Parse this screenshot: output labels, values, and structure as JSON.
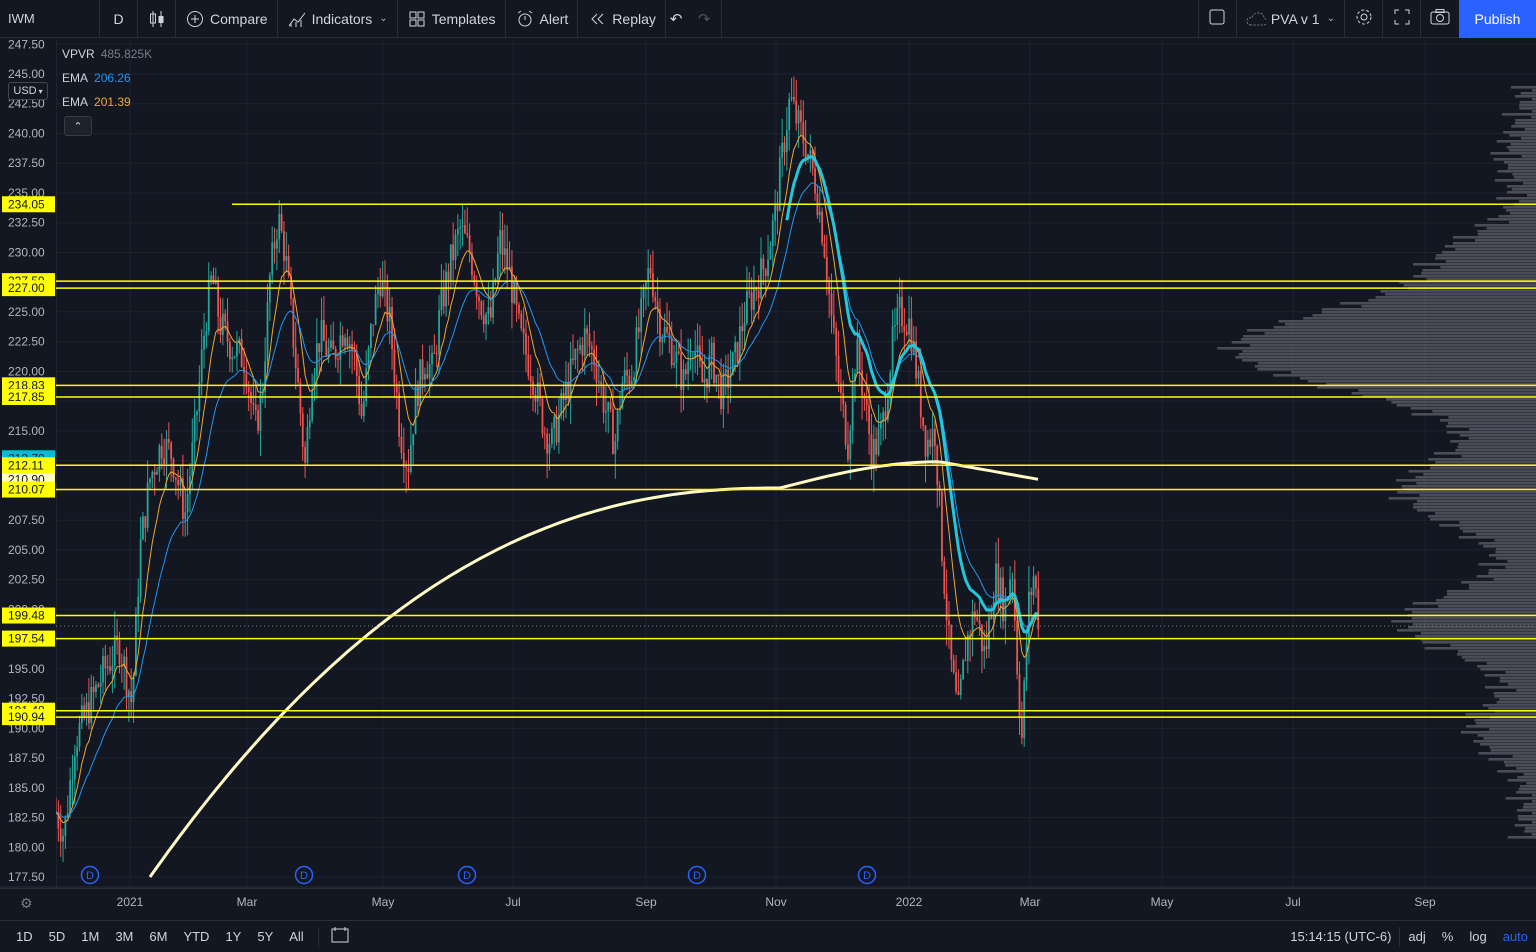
{
  "toolbar": {
    "symbol": "IWM",
    "interval": "D",
    "compare": "Compare",
    "indicators": "Indicators",
    "templates": "Templates",
    "alert": "Alert",
    "replay": "Replay",
    "layout_name": "PVA v 1",
    "publish": "Publish"
  },
  "legend": {
    "vpvr_name": "VPVR",
    "vpvr_value": "485.825K",
    "ema1_name": "EMA",
    "ema1_value": "206.26",
    "ema2_name": "EMA",
    "ema2_value": "201.39"
  },
  "currency": "USD",
  "price_axis": {
    "ticks": [
      "247.50",
      "245.00",
      "242.50",
      "240.00",
      "237.50",
      "235.00",
      "232.50",
      "230.00",
      "227.50",
      "225.00",
      "222.50",
      "220.00",
      "217.50",
      "215.00",
      "212.50",
      "210.00",
      "207.50",
      "205.00",
      "202.50",
      "200.00",
      "197.50",
      "195.00",
      "192.50",
      "190.00",
      "187.50",
      "185.00",
      "182.50",
      "180.00",
      "177.50"
    ],
    "levels": [
      {
        "value": 234.05,
        "label": "234.05"
      },
      {
        "value": 227.59,
        "label": "227.59"
      },
      {
        "value": 227.0,
        "label": "227.00"
      },
      {
        "value": 218.83,
        "label": "218.83"
      },
      {
        "value": 217.85,
        "label": "217.85"
      },
      {
        "value": 212.11,
        "label": "212.11"
      },
      {
        "value": 210.07,
        "label": "210.07"
      },
      {
        "value": 199.48,
        "label": "199.48"
      },
      {
        "value": 197.54,
        "label": "197.54"
      },
      {
        "value": 191.48,
        "label": "191.48"
      },
      {
        "value": 190.94,
        "label": "190.94"
      }
    ],
    "extra_labels": [
      {
        "value": 212.7,
        "label": "212.70",
        "color": "#00bcd4"
      },
      {
        "value": 210.9,
        "label": "210.90",
        "color": "#fff9c4"
      }
    ],
    "level_color": "#ffff00"
  },
  "time_axis": [
    "2021",
    "Mar",
    "May",
    "Jul",
    "Sep",
    "Nov",
    "2022",
    "Mar",
    "May",
    "Jul",
    "Sep"
  ],
  "dividend_marker": "D",
  "bottom": {
    "ranges": [
      "1D",
      "5D",
      "1M",
      "3M",
      "6M",
      "YTD",
      "1Y",
      "5Y",
      "All"
    ],
    "clock": "15:14:15 (UTC-6)",
    "adj": "adj",
    "percent": "%",
    "log": "log",
    "auto": "auto"
  },
  "colors": {
    "background": "#131722",
    "up": "#26a69a",
    "down": "#ef5350",
    "ema_fast": "#f0a630",
    "ema_mid": "#2196f3",
    "ema_slow": "#26c6da",
    "sma200": "#fff9c4",
    "accent": "#2962ff"
  }
}
